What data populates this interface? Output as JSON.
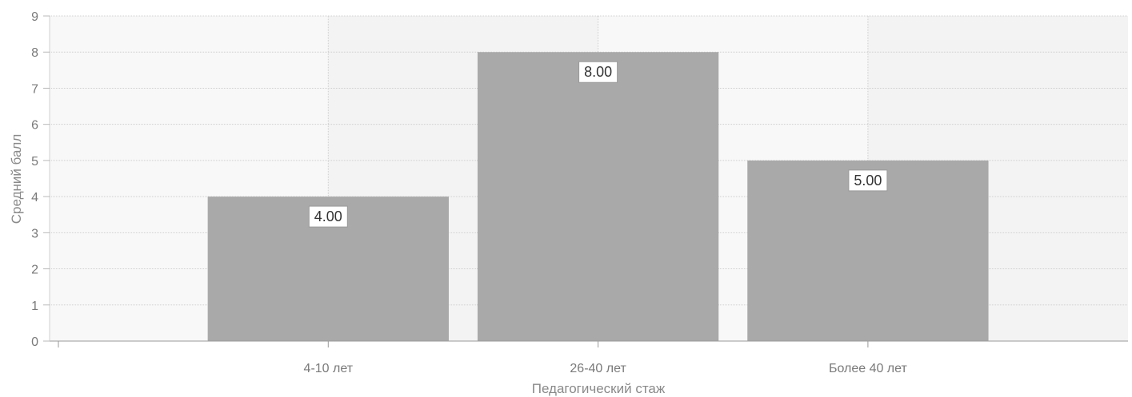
{
  "chart_data": {
    "type": "bar",
    "title": "",
    "xlabel": "Педагогический стаж",
    "ylabel": "Средний балл",
    "categories": [
      "4-10 лет",
      "26-40 лет",
      "Более 40 лет"
    ],
    "values": [
      4,
      8,
      5
    ],
    "data_labels": [
      "4.00",
      "8.00",
      "5.00"
    ],
    "ylim": [
      0,
      9
    ],
    "yticks": [
      "0",
      "1",
      "2",
      "3",
      "4",
      "5",
      "6",
      "7",
      "8",
      "9"
    ],
    "grid": true,
    "bar_color": "#a9a9a9",
    "band_colors": [
      "#f8f8f8",
      "#f3f3f3"
    ]
  }
}
